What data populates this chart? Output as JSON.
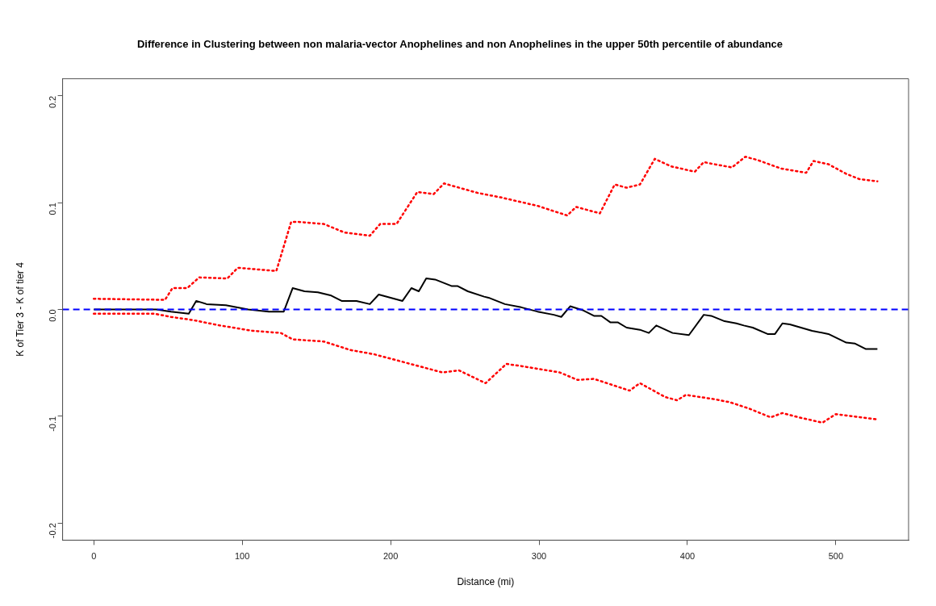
{
  "chart_data": {
    "type": "line",
    "title": "Difference in Clustering between non malaria-vector Anophelines and non Anophelines in the upper 50th percentile of abundance",
    "xlabel": "Distance (mi)",
    "ylabel": "K of Tier 3 - K of tier 4",
    "xlim": [
      -21,
      549
    ],
    "xticks": [
      0,
      100,
      200,
      300,
      400,
      500
    ],
    "ylim": [
      -0.216,
      0.216
    ],
    "yticks": [
      {
        "value": -0.2,
        "label": "-0.2"
      },
      {
        "value": -0.1,
        "label": "-0.1"
      },
      {
        "value": 0,
        "label": "0.0"
      },
      {
        "value": 0.1,
        "label": "0.1"
      },
      {
        "value": 0.2,
        "label": "0.2"
      }
    ],
    "grid": false,
    "legend": false,
    "marker": "none",
    "ref_lines": [
      {
        "axis": "y",
        "value": 0,
        "color": "#0000ff",
        "line_style": "dashed"
      }
    ],
    "series": [
      {
        "color": "#000000",
        "line_style": "solid",
        "x": [
          0,
          42,
          52,
          64,
          69,
          76,
          89,
          104,
          118,
          128,
          134,
          142,
          151,
          160,
          167,
          177,
          186,
          192,
          208,
          214,
          219,
          224,
          230,
          241,
          245,
          252,
          263,
          266,
          277,
          288,
          299,
          310,
          315,
          321,
          330,
          337,
          342,
          348,
          353,
          359,
          368,
          374,
          379,
          390,
          401,
          411,
          416,
          425,
          433,
          438,
          444,
          454,
          459,
          464,
          469,
          484,
          495,
          507,
          513,
          520,
          528
        ],
        "values": [
          0,
          0,
          -0.002,
          -0.004,
          0.008,
          0.005,
          0.004,
          0,
          -0.002,
          -0.002,
          0.02,
          0.017,
          0.016,
          0.013,
          0.008,
          0.008,
          0.005,
          0.014,
          0.008,
          0.02,
          0.017,
          0.029,
          0.028,
          0.022,
          0.022,
          0.017,
          0.012,
          0.011,
          0.005,
          0.002,
          -0.002,
          -0.005,
          -0.007,
          0.003,
          -0.001,
          -0.006,
          -0.006,
          -0.012,
          -0.012,
          -0.017,
          -0.019,
          -0.022,
          -0.015,
          -0.022,
          -0.024,
          -0.005,
          -0.006,
          -0.011,
          -0.013,
          -0.015,
          -0.017,
          -0.023,
          -0.023,
          -0.013,
          -0.014,
          -0.02,
          -0.023,
          -0.031,
          -0.032,
          -0.037,
          -0.037
        ]
      },
      {
        "color": "#ff0000",
        "line_style": "dotted",
        "x": [
          0,
          48,
          53,
          63,
          71,
          90,
          97,
          123,
          133,
          138,
          155,
          169,
          186,
          193,
          204,
          218,
          229,
          236,
          259,
          274,
          299,
          319,
          325,
          341,
          351,
          359,
          368,
          378,
          389,
          405,
          411,
          418,
          430,
          439,
          447,
          463,
          480,
          485,
          495,
          507,
          516,
          528
        ],
        "values": [
          0.01,
          0.009,
          0.02,
          0.02,
          0.03,
          0.029,
          0.039,
          0.036,
          0.082,
          0.082,
          0.08,
          0.072,
          0.069,
          0.08,
          0.08,
          0.11,
          0.108,
          0.118,
          0.109,
          0.105,
          0.097,
          0.088,
          0.096,
          0.09,
          0.117,
          0.114,
          0.117,
          0.141,
          0.134,
          0.129,
          0.138,
          0.136,
          0.133,
          0.143,
          0.14,
          0.132,
          0.128,
          0.139,
          0.136,
          0.127,
          0.122,
          0.12
        ]
      },
      {
        "color": "#ff0000",
        "line_style": "dotted",
        "x": [
          0,
          41,
          52,
          67,
          85,
          107,
          126,
          134,
          155,
          173,
          189,
          208,
          235,
          246,
          264,
          278,
          288,
          314,
          326,
          337,
          361,
          368,
          385,
          393,
          399,
          418,
          429,
          442,
          456,
          464,
          475,
          491,
          500,
          528
        ],
        "values": [
          -0.004,
          -0.004,
          -0.007,
          -0.01,
          -0.015,
          -0.02,
          -0.022,
          -0.028,
          -0.03,
          -0.038,
          -0.042,
          -0.049,
          -0.059,
          -0.057,
          -0.069,
          -0.051,
          -0.053,
          -0.059,
          -0.066,
          -0.065,
          -0.076,
          -0.069,
          -0.082,
          -0.085,
          -0.08,
          -0.084,
          -0.087,
          -0.093,
          -0.101,
          -0.097,
          -0.101,
          -0.106,
          -0.098,
          -0.103
        ]
      }
    ]
  }
}
